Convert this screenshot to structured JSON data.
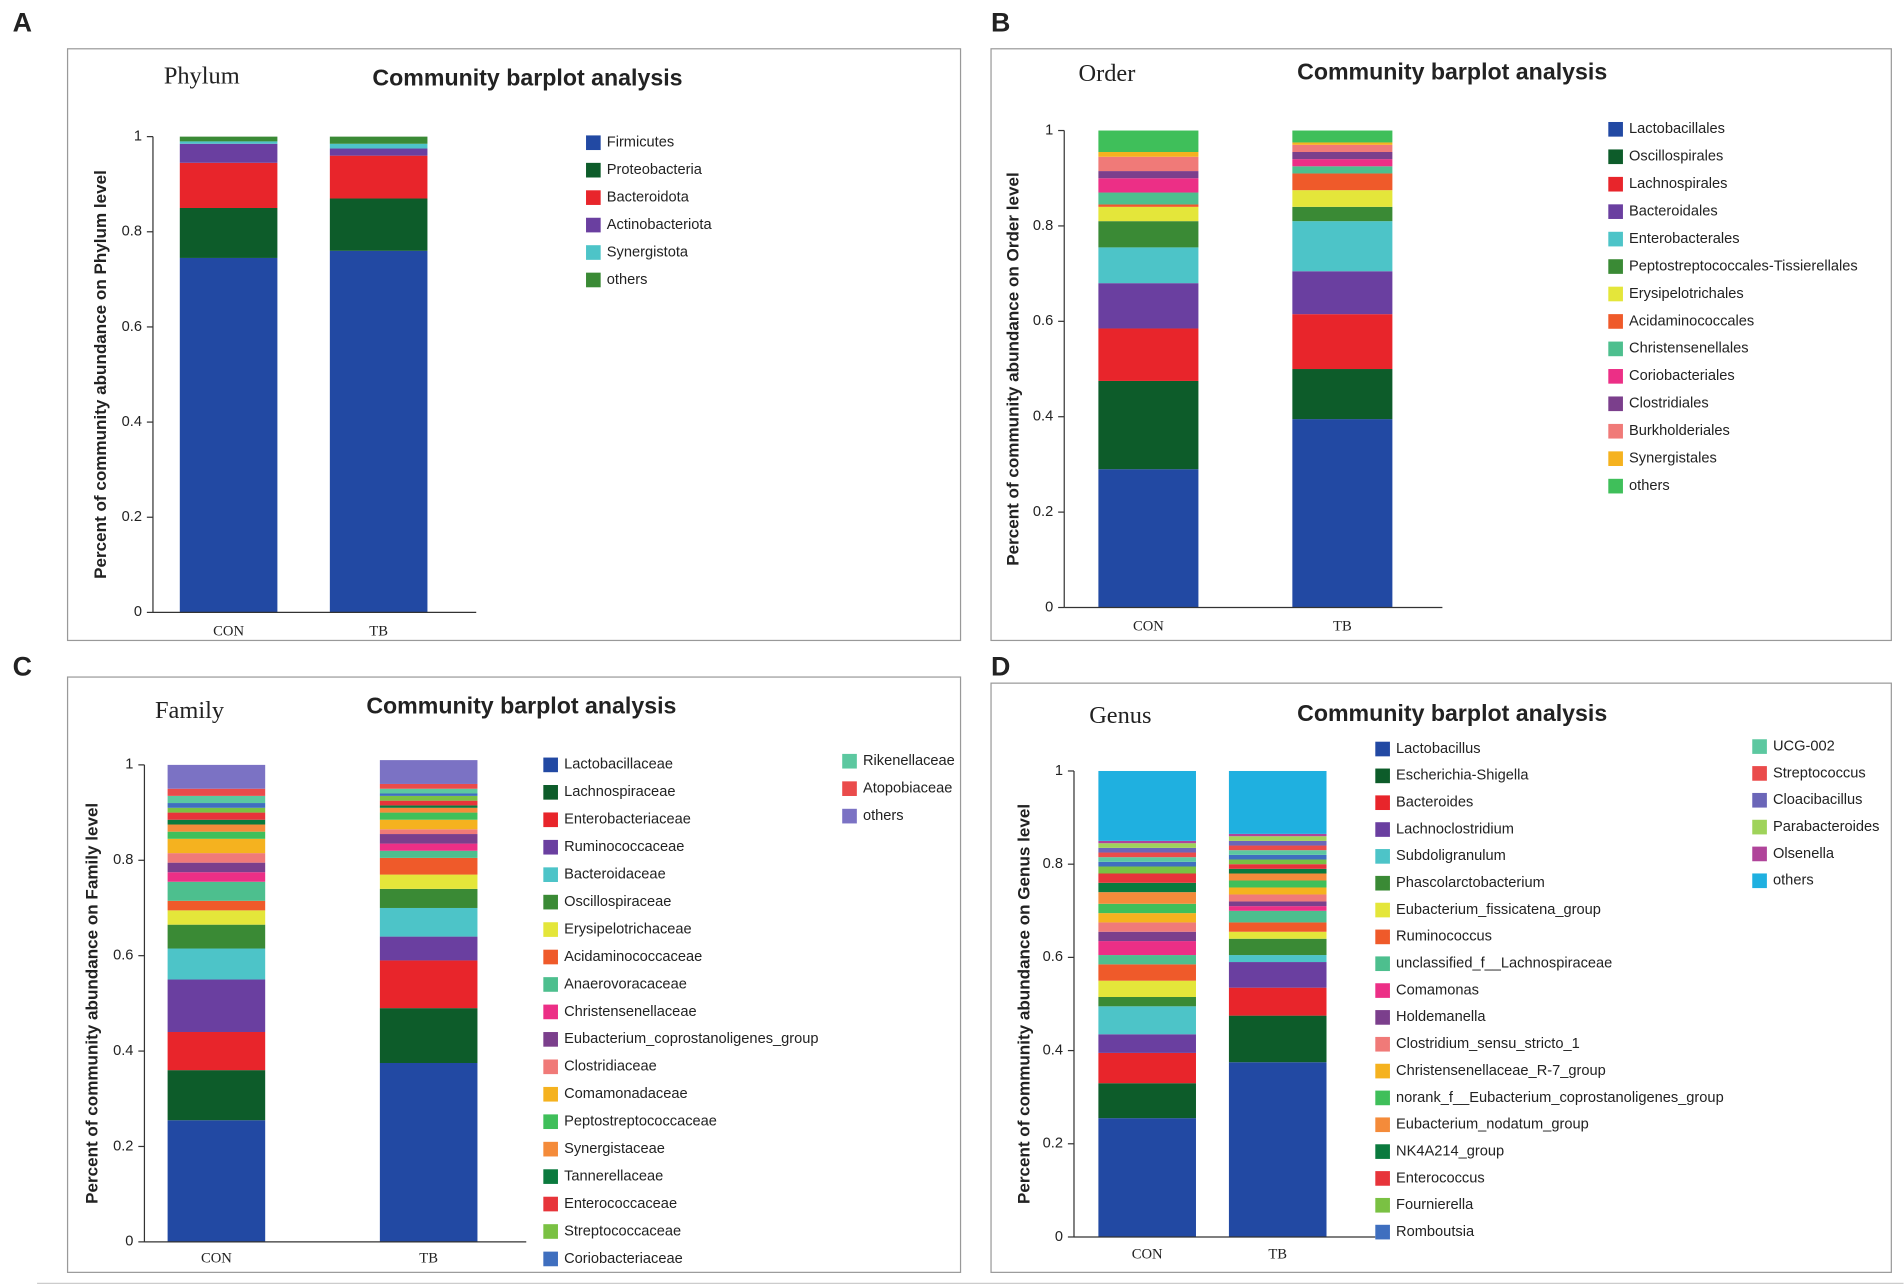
{
  "chart_data": [
    {
      "type": "bar",
      "stacked": true,
      "panel": "A",
      "level": "Phylum",
      "title": "Community barplot analysis",
      "ylabel": "Percent of community abundance on Phylum level",
      "categories": [
        "CON",
        "TB"
      ],
      "ylim": [
        0,
        1
      ],
      "yticks": [
        0,
        0.2,
        0.4,
        0.6,
        0.8,
        1
      ],
      "series": [
        {
          "name": "Firmicutes",
          "color": "#2249a3",
          "values": [
            0.745,
            0.76
          ]
        },
        {
          "name": "Proteobacteria",
          "color": "#0d5c2a",
          "values": [
            0.105,
            0.11
          ]
        },
        {
          "name": "Bacteroidota",
          "color": "#e8252b",
          "values": [
            0.095,
            0.09
          ]
        },
        {
          "name": "Actinobacteriota",
          "color": "#6a3fa0",
          "values": [
            0.04,
            0.015
          ]
        },
        {
          "name": "Synergistota",
          "color": "#4dc4c8",
          "values": [
            0.005,
            0.01
          ]
        },
        {
          "name": "others",
          "color": "#3a8a35",
          "values": [
            0.01,
            0.015
          ]
        }
      ]
    },
    {
      "type": "bar",
      "stacked": true,
      "panel": "B",
      "level": "Order",
      "title": "Community barplot analysis",
      "ylabel": "Percent of community abundance on Order level",
      "categories": [
        "CON",
        "TB"
      ],
      "ylim": [
        0,
        1
      ],
      "yticks": [
        0,
        0.2,
        0.4,
        0.6,
        0.8,
        1
      ],
      "series": [
        {
          "name": "Lactobacillales",
          "color": "#2249a3",
          "values": [
            0.29,
            0.395
          ]
        },
        {
          "name": "Oscillospirales",
          "color": "#0d5c2a",
          "values": [
            0.185,
            0.105
          ]
        },
        {
          "name": "Lachnospirales",
          "color": "#e8252b",
          "values": [
            0.11,
            0.115
          ]
        },
        {
          "name": "Bacteroidales",
          "color": "#6a3fa0",
          "values": [
            0.095,
            0.09
          ]
        },
        {
          "name": "Enterobacterales",
          "color": "#4dc4c8",
          "values": [
            0.075,
            0.105
          ]
        },
        {
          "name": "Peptostreptococcales-Tissierellales",
          "color": "#3a8a35",
          "values": [
            0.055,
            0.03
          ]
        },
        {
          "name": "Erysipelotrichales",
          "color": "#e4e63a",
          "values": [
            0.03,
            0.035
          ]
        },
        {
          "name": "Acidaminococcales",
          "color": "#ef5a2a",
          "values": [
            0.005,
            0.035
          ]
        },
        {
          "name": "Christensenellales",
          "color": "#4dbf8e",
          "values": [
            0.025,
            0.015
          ]
        },
        {
          "name": "Coriobacteriales",
          "color": "#ec2f86",
          "values": [
            0.03,
            0.015
          ]
        },
        {
          "name": "Clostridiales",
          "color": "#7b3f8c",
          "values": [
            0.015,
            0.015
          ]
        },
        {
          "name": "Burkholderiales",
          "color": "#f07a78",
          "values": [
            0.03,
            0.015
          ]
        },
        {
          "name": "Synergistales",
          "color": "#f5b21f",
          "values": [
            0.01,
            0.005
          ]
        },
        {
          "name": "others",
          "color": "#3fbf5a",
          "values": [
            0.045,
            0.025
          ]
        }
      ]
    },
    {
      "type": "bar",
      "stacked": true,
      "panel": "C",
      "level": "Family",
      "title": "Community barplot analysis",
      "ylabel": "Percent of community abundance on Family level",
      "categories": [
        "CON",
        "TB"
      ],
      "ylim": [
        0,
        1
      ],
      "yticks": [
        0,
        0.2,
        0.4,
        0.6,
        0.8,
        1
      ],
      "series": [
        {
          "name": "Lactobacillaceae",
          "color": "#2249a3",
          "values": [
            0.255,
            0.375
          ]
        },
        {
          "name": "Lachnospiraceae",
          "color": "#0d5c2a",
          "values": [
            0.105,
            0.115
          ]
        },
        {
          "name": "Enterobacteriaceae",
          "color": "#e8252b",
          "values": [
            0.08,
            0.1
          ]
        },
        {
          "name": "Ruminococcaceae",
          "color": "#6a3fa0",
          "values": [
            0.11,
            0.05
          ]
        },
        {
          "name": "Bacteroidaceae",
          "color": "#4dc4c8",
          "values": [
            0.065,
            0.06
          ]
        },
        {
          "name": "Oscillospiraceae",
          "color": "#3a8a35",
          "values": [
            0.05,
            0.04
          ]
        },
        {
          "name": "Erysipelotrichaceae",
          "color": "#e4e63a",
          "values": [
            0.03,
            0.03
          ]
        },
        {
          "name": "Acidaminococcaceae",
          "color": "#ef5a2a",
          "values": [
            0.02,
            0.035
          ]
        },
        {
          "name": "Anaerovoracaceae",
          "color": "#4dbf8e",
          "values": [
            0.04,
            0.015
          ]
        },
        {
          "name": "Christensenellaceae",
          "color": "#ec2f86",
          "values": [
            0.02,
            0.015
          ]
        },
        {
          "name": "Eubacterium_coprostanoligenes_group",
          "color": "#7b3f8c",
          "values": [
            0.02,
            0.02
          ]
        },
        {
          "name": "Clostridiaceae",
          "color": "#f07a78",
          "values": [
            0.02,
            0.01
          ]
        },
        {
          "name": "Comamonadaceae",
          "color": "#f5b21f",
          "values": [
            0.03,
            0.02
          ]
        },
        {
          "name": "Peptostreptococcaceae",
          "color": "#3fbf5a",
          "values": [
            0.015,
            0.015
          ]
        },
        {
          "name": "Synergistaceae",
          "color": "#f48b3a",
          "values": [
            0.015,
            0.01
          ]
        },
        {
          "name": "Tannerellaceae",
          "color": "#0b7a3e",
          "values": [
            0.01,
            0.005
          ]
        },
        {
          "name": "Enterococcaceae",
          "color": "#e7343a",
          "values": [
            0.015,
            0.01
          ]
        },
        {
          "name": "Streptococcaceae",
          "color": "#7ac143",
          "values": [
            0.01,
            0.01
          ]
        },
        {
          "name": "Coriobacteriaceae",
          "color": "#3f6fbf",
          "values": [
            0.01,
            0.005
          ]
        },
        {
          "name": "Rikenellaceae",
          "color": "#5cc8a0",
          "values": [
            0.015,
            0.01
          ]
        },
        {
          "name": "Atopobiaceae",
          "color": "#ea4b4b",
          "values": [
            0.015,
            0.01
          ]
        },
        {
          "name": "others",
          "color": "#7b72c4",
          "values": [
            0.05,
            0.05
          ]
        }
      ]
    },
    {
      "type": "bar",
      "stacked": true,
      "panel": "D",
      "level": "Genus",
      "title": "Community barplot analysis",
      "ylabel": "Percent of community abundance on Genus level",
      "categories": [
        "CON",
        "TB"
      ],
      "ylim": [
        0,
        1
      ],
      "yticks": [
        0,
        0.2,
        0.4,
        0.6,
        0.8,
        1
      ],
      "series": [
        {
          "name": "Lactobacillus",
          "color": "#2249a3",
          "values": [
            0.255,
            0.375
          ]
        },
        {
          "name": "Escherichia-Shigella",
          "color": "#0d5c2a",
          "values": [
            0.075,
            0.1
          ]
        },
        {
          "name": "Bacteroides",
          "color": "#e8252b",
          "values": [
            0.065,
            0.06
          ]
        },
        {
          "name": "Lachnoclostridium",
          "color": "#6a3fa0",
          "values": [
            0.04,
            0.055
          ]
        },
        {
          "name": "Subdoligranulum",
          "color": "#4dc4c8",
          "values": [
            0.06,
            0.015
          ]
        },
        {
          "name": "Phascolarctobacterium",
          "color": "#3a8a35",
          "values": [
            0.02,
            0.035
          ]
        },
        {
          "name": "Eubacterium_fissicatena_group",
          "color": "#e4e63a",
          "values": [
            0.035,
            0.015
          ]
        },
        {
          "name": "Ruminococcus",
          "color": "#ef5a2a",
          "values": [
            0.035,
            0.02
          ]
        },
        {
          "name": "unclassified_f__Lachnospiraceae",
          "color": "#4dbf8e",
          "values": [
            0.02,
            0.025
          ]
        },
        {
          "name": "Comamonas",
          "color": "#ec2f86",
          "values": [
            0.03,
            0.01
          ]
        },
        {
          "name": "Holdemanella",
          "color": "#7b3f8c",
          "values": [
            0.02,
            0.01
          ]
        },
        {
          "name": "Clostridium_sensu_stricto_1",
          "color": "#f07a78",
          "values": [
            0.02,
            0.015
          ]
        },
        {
          "name": "Christensenellaceae_R-7_group",
          "color": "#f5b21f",
          "values": [
            0.02,
            0.015
          ]
        },
        {
          "name": "norank_f__Eubacterium_coprostanoligenes_group",
          "color": "#3fbf5a",
          "values": [
            0.02,
            0.015
          ]
        },
        {
          "name": "Eubacterium_nodatum_group",
          "color": "#f48b3a",
          "values": [
            0.025,
            0.015
          ]
        },
        {
          "name": "NK4A214_group",
          "color": "#0b7a3e",
          "values": [
            0.02,
            0.01
          ]
        },
        {
          "name": "Enterococcus",
          "color": "#e7343a",
          "values": [
            0.02,
            0.01
          ]
        },
        {
          "name": "Fournierella",
          "color": "#7ac143",
          "values": [
            0.015,
            0.01
          ]
        },
        {
          "name": "Romboutsia",
          "color": "#3f6fbf",
          "values": [
            0.01,
            0.01
          ]
        },
        {
          "name": "UCG-002",
          "color": "#5cc8a0",
          "values": [
            0.01,
            0.01
          ]
        },
        {
          "name": "Streptococcus",
          "color": "#ea4b4b",
          "values": [
            0.01,
            0.01
          ]
        },
        {
          "name": "Cloacibacillus",
          "color": "#6b66b8",
          "values": [
            0.01,
            0.01
          ]
        },
        {
          "name": "Parabacteroides",
          "color": "#9fd35a",
          "values": [
            0.01,
            0.01
          ]
        },
        {
          "name": "Olsenella",
          "color": "#b0449a",
          "values": [
            0.005,
            0.005
          ]
        },
        {
          "name": "others",
          "color": "#1fb0e0",
          "values": [
            0.15,
            0.135
          ]
        }
      ]
    }
  ]
}
